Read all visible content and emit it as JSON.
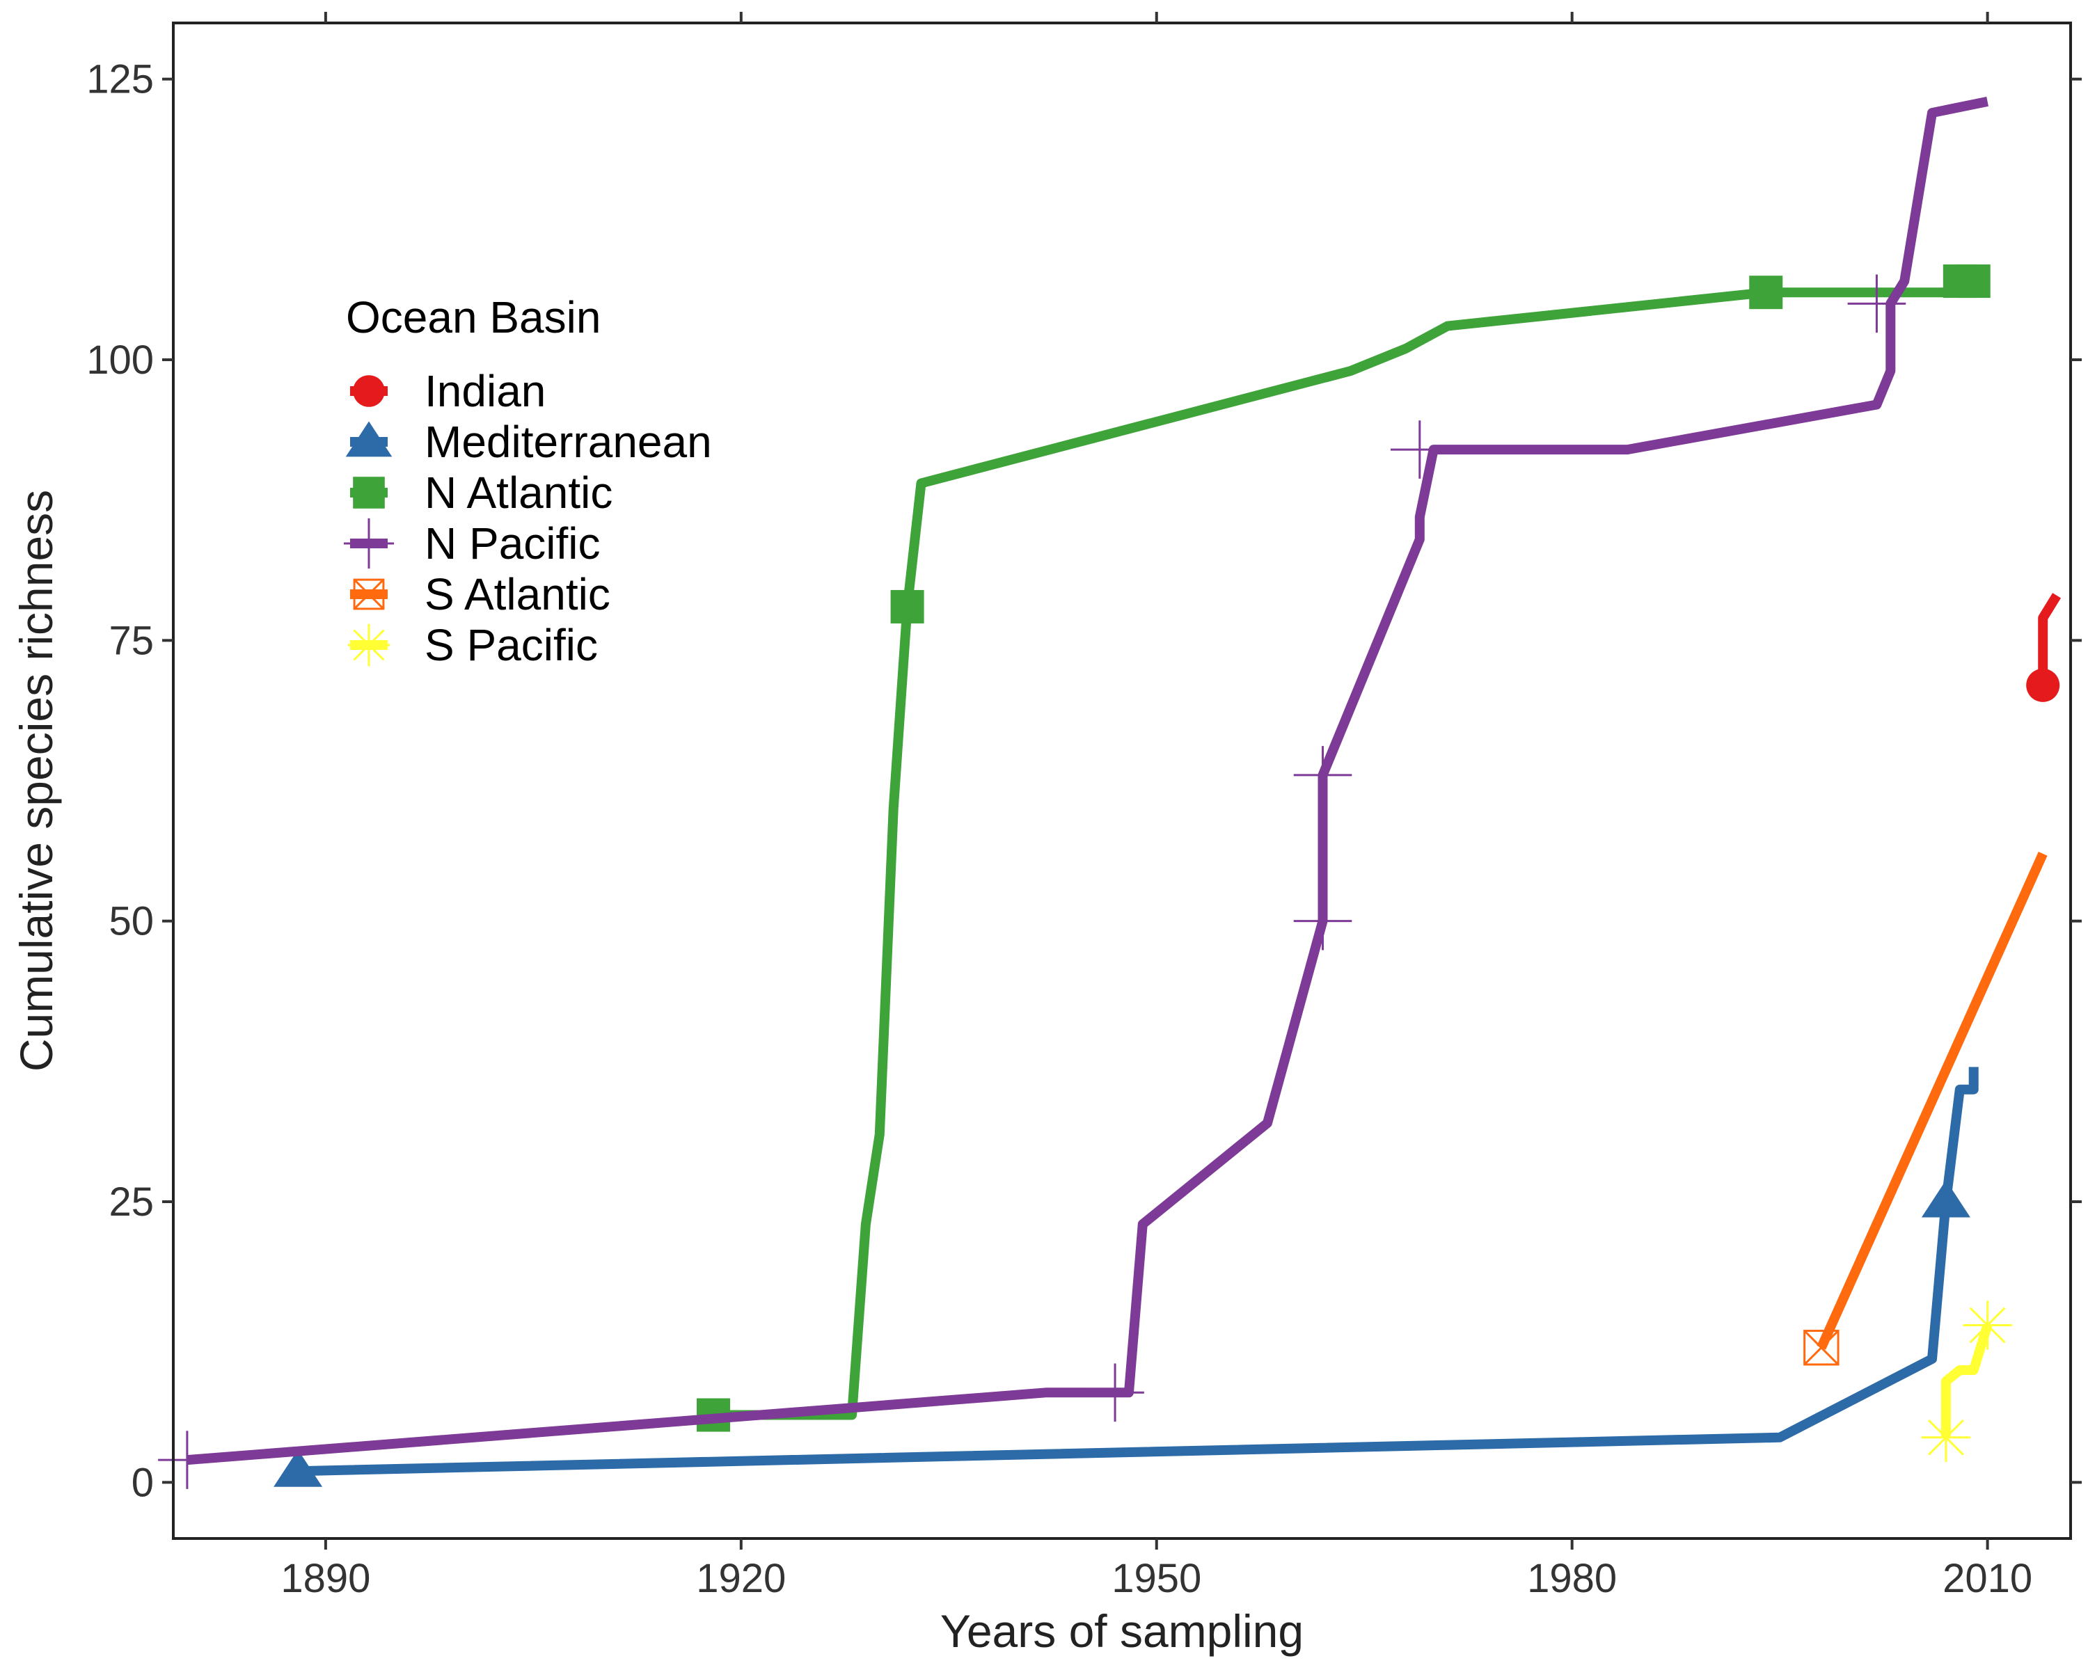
{
  "chart_data": {
    "type": "line",
    "title": "",
    "xlabel": "Years of sampling",
    "ylabel": "Cumulative species richness",
    "xlim": [
      1879,
      2016
    ],
    "ylim": [
      -5,
      130
    ],
    "xticks": [
      1890,
      1920,
      1950,
      1980,
      2010
    ],
    "yticks": [
      0,
      25,
      50,
      75,
      100,
      125
    ],
    "grid": false,
    "legend": {
      "title": "Ocean Basin",
      "placement": "upper-left inside"
    },
    "series": [
      {
        "name": "Indian",
        "color": "#e41a1c",
        "marker": "circle",
        "points": [
          [
            2014,
            71
          ],
          [
            2014,
            77
          ],
          [
            2015,
            79
          ]
        ],
        "marker_points": [
          [
            2014,
            71
          ]
        ]
      },
      {
        "name": "Mediterranean",
        "color": "#2c6aa8",
        "marker": "triangle",
        "points": [
          [
            1888,
            1
          ],
          [
            1995,
            4
          ],
          [
            2006,
            11
          ],
          [
            2007,
            25
          ],
          [
            2008,
            35
          ],
          [
            2009,
            35
          ],
          [
            2009,
            37
          ]
        ],
        "marker_points": [
          [
            1888,
            1
          ],
          [
            2007,
            25
          ]
        ]
      },
      {
        "name": "N Atlantic",
        "color": "#3ea338",
        "marker": "square",
        "points": [
          [
            1918,
            6
          ],
          [
            1928,
            6
          ],
          [
            1929,
            23
          ],
          [
            1930,
            31
          ],
          [
            1931,
            60
          ],
          [
            1932,
            78
          ],
          [
            1933,
            89
          ],
          [
            1964,
            99
          ],
          [
            1968,
            101
          ],
          [
            1971,
            103
          ],
          [
            1994,
            106
          ],
          [
            2007,
            106
          ],
          [
            2008,
            107
          ],
          [
            2009,
            107
          ]
        ],
        "marker_points": [
          [
            1918,
            6
          ],
          [
            1932,
            78
          ],
          [
            1994,
            106
          ],
          [
            2008,
            107
          ],
          [
            2009,
            107
          ]
        ]
      },
      {
        "name": "N Pacific",
        "color": "#7d3a96",
        "marker": "plus",
        "points": [
          [
            1880,
            2
          ],
          [
            1942,
            8
          ],
          [
            1948,
            8
          ],
          [
            1949,
            23
          ],
          [
            1958,
            32
          ],
          [
            1962,
            50
          ],
          [
            1962,
            63
          ],
          [
            1969,
            84
          ],
          [
            1969,
            86
          ],
          [
            1970,
            92
          ],
          [
            1984,
            92
          ],
          [
            2002,
            96
          ],
          [
            2003,
            99
          ],
          [
            2003,
            105
          ],
          [
            2004,
            107
          ],
          [
            2006,
            122
          ],
          [
            2010,
            123
          ]
        ],
        "marker_points": [
          [
            1880,
            2
          ],
          [
            1947,
            8
          ],
          [
            1962,
            50
          ],
          [
            1962,
            63
          ],
          [
            1969,
            92
          ],
          [
            2002,
            105
          ]
        ]
      },
      {
        "name": "S Atlantic",
        "color": "#ff6a0f",
        "marker": "square-x",
        "points": [
          [
            1998,
            12
          ],
          [
            2014,
            56
          ]
        ],
        "marker_points": [
          [
            1998,
            12
          ]
        ]
      },
      {
        "name": "S Pacific",
        "color": "#ffff33",
        "marker": "asterisk",
        "points": [
          [
            2007,
            4
          ],
          [
            2007,
            9
          ],
          [
            2008,
            10
          ],
          [
            2009,
            10
          ],
          [
            2010,
            14
          ]
        ],
        "marker_points": [
          [
            2007,
            4
          ],
          [
            2010,
            14
          ]
        ]
      }
    ]
  }
}
